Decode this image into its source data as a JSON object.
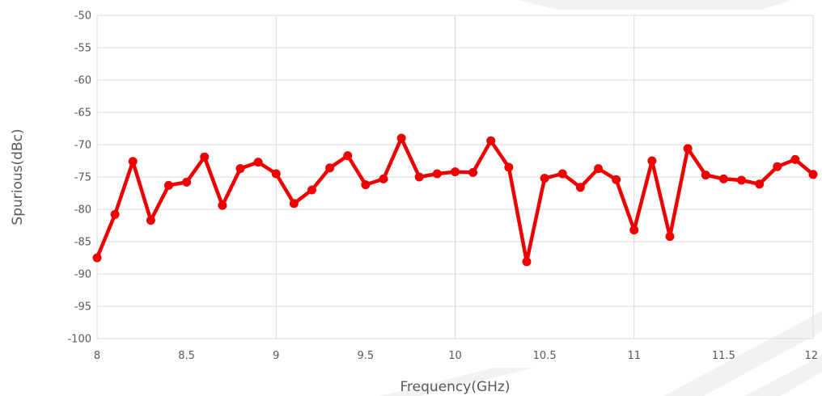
{
  "chart_data": {
    "type": "line",
    "title": "",
    "xlabel": "Frequency(GHz)",
    "ylabel": "Spurious(dBc)",
    "xlim": [
      8,
      12
    ],
    "ylim": [
      -100,
      -50
    ],
    "x_ticks": [
      "8",
      "8.5",
      "9",
      "9.5",
      "10",
      "10.5",
      "11",
      "11.5",
      "12"
    ],
    "y_ticks": [
      "-50",
      "-55",
      "-60",
      "-65",
      "-70",
      "-75",
      "-80",
      "-85",
      "-90",
      "-95",
      "-100"
    ],
    "grid": true,
    "legend": "none",
    "series": [
      {
        "color": "#ee0000",
        "marker": "circle",
        "x": [
          8.0,
          8.1,
          8.2,
          8.3,
          8.4,
          8.5,
          8.6,
          8.7,
          8.8,
          8.9,
          9.0,
          9.1,
          9.2,
          9.3,
          9.4,
          9.5,
          9.6,
          9.7,
          9.8,
          9.9,
          10.0,
          10.1,
          10.2,
          10.3,
          10.4,
          10.5,
          10.6,
          10.7,
          10.8,
          10.9,
          11.0,
          11.1,
          11.2,
          11.3,
          11.4,
          11.5,
          11.6,
          11.7,
          11.8,
          11.9,
          12.0
        ],
        "values": [
          -87.5,
          -80.8,
          -72.6,
          -81.7,
          -76.3,
          -75.8,
          -71.9,
          -79.4,
          -73.7,
          -72.7,
          -74.5,
          -79.1,
          -77.0,
          -73.6,
          -71.7,
          -76.2,
          -75.3,
          -69.0,
          -75.0,
          -74.5,
          -74.2,
          -74.3,
          -69.4,
          -73.5,
          -88.1,
          -75.2,
          -74.5,
          -76.6,
          -73.7,
          -75.4,
          -83.2,
          -72.5,
          -84.2,
          -70.6,
          -74.7,
          -75.3,
          -75.5,
          -76.1,
          -73.4,
          -72.3,
          -74.6
        ]
      }
    ]
  }
}
